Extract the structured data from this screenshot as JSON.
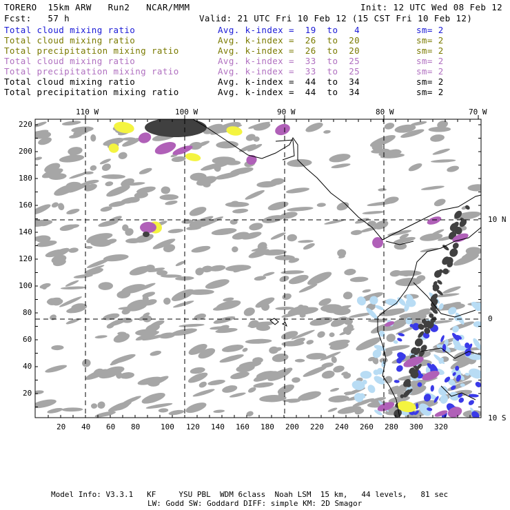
{
  "header": {
    "title_left": "TORERO  15km ARW   Run2   NCAR/MMM",
    "init": "Init: 12 UTC Wed 08 Feb 12",
    "fcst": "Fcst:   57 h",
    "valid": "Valid: 21 UTC Fri 10 Feb 12 (15 CST Fri 10 Feb 12)"
  },
  "legend": [
    {
      "field": "Total cloud mixing ratio",
      "kindex": "Avg. k-index =  19  to   4",
      "sm": "sm= 2",
      "color": "#1a1ad6"
    },
    {
      "field": "Total cloud mixing ratio",
      "kindex": "Avg. k-index =  26  to  20",
      "sm": "sm= 2",
      "color": "#7a7a00"
    },
    {
      "field": "Total precipitation mixing ratio",
      "kindex": "Avg. k-index =  26  to  20",
      "sm": "sm= 2",
      "color": "#7a7a00"
    },
    {
      "field": "Total cloud mixing ratio",
      "kindex": "Avg. k-index =  33  to  25",
      "sm": "sm= 2",
      "color": "#b070c0"
    },
    {
      "field": "Total precipitation mixing ratio",
      "kindex": "Avg. k-index =  33  to  25",
      "sm": "sm= 2",
      "color": "#b070c0"
    },
    {
      "field": "Total cloud mixing ratio",
      "kindex": "Avg. k-index =  44  to  34",
      "sm": "sm= 2",
      "color": "#000000"
    },
    {
      "field": "Total precipitation mixing ratio",
      "kindex": "Avg. k-index =  44  to  34",
      "sm": "sm= 2",
      "color": "#000000"
    }
  ],
  "lon_labels": [
    "110 W",
    "100 W",
    "90 W",
    "80 W",
    "70 W"
  ],
  "lat_labels": [
    "10 N",
    "0",
    "10 S"
  ],
  "y_ticks": [
    "220",
    "200",
    "180",
    "160",
    "140",
    "120",
    "100",
    "80",
    "60",
    "40",
    "20"
  ],
  "x_ticks": [
    "20",
    "40",
    "60",
    "80",
    "100",
    "120",
    "140",
    "160",
    "180",
    "200",
    "220",
    "240",
    "260",
    "280",
    "300",
    "320"
  ],
  "footer": {
    "line1": "Model Info: V3.3.1   KF     YSU PBL  WDM 6class  Noah LSM  15 km,   44 levels,   81 sec",
    "line2": "LW: Godd SW: Goddard DIFF: simple KM: 2D Smagor"
  },
  "colors": {
    "cloud_gray": "#a6a6a6",
    "cloud_dark": "#404040",
    "yellow": "#f4f440",
    "purple": "#b060b8",
    "blue": "#3a3ae8",
    "light_blue": "#b8dcf4"
  }
}
